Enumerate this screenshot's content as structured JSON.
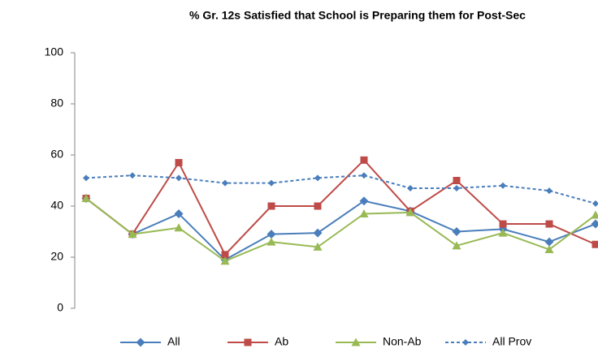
{
  "chart_data": {
    "type": "line",
    "title": "% Gr. 12s  Satisfied that School is Preparing them for Post-Sec",
    "categories": [
      null,
      null,
      null,
      null,
      null,
      null,
      null,
      null,
      null,
      null,
      null,
      null
    ],
    "series": [
      {
        "name": "All",
        "color": "#4a7ebb",
        "marker": "diamond",
        "dash": false,
        "values": [
          43,
          29,
          37,
          19,
          29,
          29.5,
          42,
          38,
          30,
          31,
          26,
          33
        ]
      },
      {
        "name": "Ab",
        "color": "#be4b48",
        "marker": "square",
        "dash": false,
        "values": [
          43,
          29,
          57,
          21,
          40,
          40,
          58,
          38,
          50,
          33,
          33,
          25
        ]
      },
      {
        "name": "Non-Ab",
        "color": "#98b954",
        "marker": "triangle",
        "dash": false,
        "values": [
          43,
          29,
          31.5,
          18.5,
          26,
          24,
          37,
          37.5,
          24.5,
          29.5,
          23,
          36.5
        ]
      },
      {
        "name": "All Prov",
        "color": "#4a7ebb",
        "marker": "diamond",
        "dash": true,
        "values": [
          51,
          52,
          51,
          49,
          49,
          51,
          52,
          47,
          47,
          48,
          46,
          41
        ]
      }
    ],
    "ylim": [
      0,
      100
    ],
    "yticks": [
      0,
      20,
      40,
      60,
      80,
      100
    ],
    "grid": false,
    "legend": "bottom"
  }
}
